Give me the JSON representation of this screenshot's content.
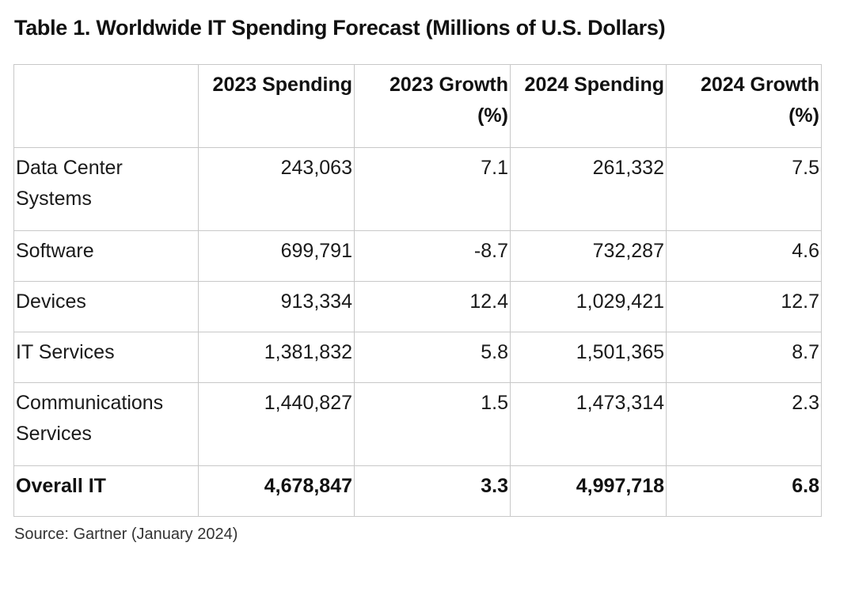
{
  "title": "Table 1. Worldwide IT Spending Forecast (Millions of U.S. Dollars)",
  "table": {
    "headers": [
      "",
      "2023 Spending",
      "2023 Growth (%)",
      "2024 Spending",
      "2024 Growth (%)"
    ],
    "rows": [
      {
        "segment": "Data Center Systems",
        "spending_2023": "243,063",
        "growth_2023": "7.1",
        "spending_2024": "261,332",
        "growth_2024": "7.5"
      },
      {
        "segment": "Software",
        "spending_2023": "699,791",
        "growth_2023": "-8.7",
        "spending_2024": "732,287",
        "growth_2024": "4.6"
      },
      {
        "segment": "Devices",
        "spending_2023": "913,334",
        "growth_2023": "12.4",
        "spending_2024": "1,029,421",
        "growth_2024": "12.7"
      },
      {
        "segment": "IT Services",
        "spending_2023": "1,381,832",
        "growth_2023": "5.8",
        "spending_2024": "1,501,365",
        "growth_2024": "8.7"
      },
      {
        "segment": "Communications Services",
        "spending_2023": "1,440,827",
        "growth_2023": "1.5",
        "spending_2024": "1,473,314",
        "growth_2024": "2.3"
      }
    ],
    "overall": {
      "segment": "Overall IT",
      "spending_2023": "4,678,847",
      "growth_2023": "3.3",
      "spending_2024": "4,997,718",
      "growth_2024": "6.8"
    }
  },
  "source": "Source: Gartner (January 2024)"
}
